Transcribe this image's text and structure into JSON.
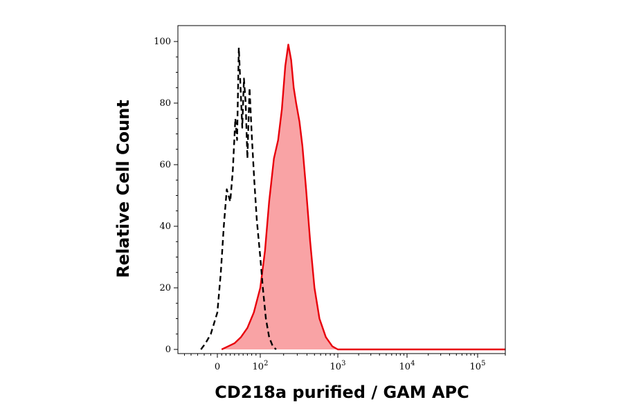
{
  "chart_data": {
    "type": "area",
    "xlabel": "CD218a purified / GAM APC",
    "ylabel": "Relative Cell Count",
    "ylim": [
      0,
      100
    ],
    "x_scale": "biexponential",
    "x_range": [
      -60,
      200000
    ],
    "grid": false,
    "y_ticks": [
      {
        "value": 0,
        "label": "0"
      },
      {
        "value": 20,
        "label": "20"
      },
      {
        "value": 40,
        "label": "40"
      },
      {
        "value": 60,
        "label": "60"
      },
      {
        "value": 80,
        "label": "80"
      },
      {
        "value": 100,
        "label": "100"
      }
    ],
    "x_ticks": [
      {
        "value": 0,
        "label": "0",
        "exp": ""
      },
      {
        "value": 100,
        "label": "10",
        "exp": "2"
      },
      {
        "value": 1000,
        "label": "10",
        "exp": "3"
      },
      {
        "value": 10000,
        "label": "10",
        "exp": "4"
      },
      {
        "value": 100000,
        "label": "10",
        "exp": "5"
      }
    ],
    "series": [
      {
        "style": "dashed",
        "color": "#000000",
        "fill": "none",
        "x": [
          -25,
          -18,
          -10,
          0,
          8,
          15,
          22,
          30,
          36,
          42,
          46,
          50,
          54,
          58,
          62,
          66,
          70,
          75,
          80,
          86,
          92,
          100,
          108,
          118,
          130,
          145,
          160
        ],
        "y": [
          0,
          2,
          5,
          12,
          25,
          40,
          52,
          48,
          58,
          75,
          68,
          98,
          85,
          72,
          88,
          80,
          62,
          85,
          70,
          55,
          42,
          30,
          20,
          10,
          4,
          1,
          0
        ]
      },
      {
        "style": "solid",
        "color": "#e8000b",
        "fill": "#f9a3a5",
        "x": [
          10,
          25,
          40,
          55,
          70,
          85,
          100,
          115,
          130,
          150,
          170,
          190,
          210,
          230,
          250,
          270,
          290,
          320,
          350,
          390,
          440,
          500,
          580,
          700,
          850,
          1000,
          2000,
          10000,
          100000,
          200000
        ],
        "y": [
          0,
          1,
          2,
          4,
          7,
          12,
          20,
          32,
          48,
          62,
          68,
          78,
          92,
          99,
          94,
          85,
          80,
          74,
          66,
          52,
          35,
          20,
          10,
          4,
          1,
          0,
          0,
          0,
          0,
          0
        ]
      }
    ]
  }
}
